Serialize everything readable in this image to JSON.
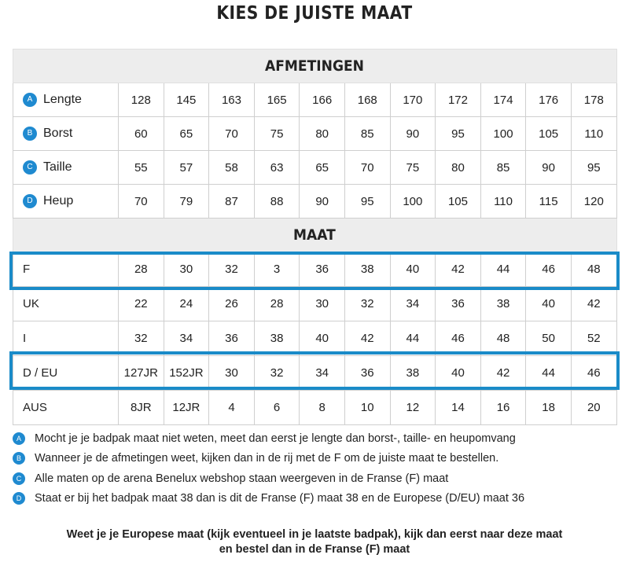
{
  "title": "KIES DE JUISTE MAAT",
  "measurements": {
    "heading": "AFMETINGEN",
    "rows": [
      {
        "badge": "A",
        "label": "Lengte",
        "values": [
          "128",
          "145",
          "163",
          "165",
          "166",
          "168",
          "170",
          "172",
          "174",
          "176",
          "178"
        ]
      },
      {
        "badge": "B",
        "label": "Borst",
        "values": [
          "60",
          "65",
          "70",
          "75",
          "80",
          "85",
          "90",
          "95",
          "100",
          "105",
          "110"
        ]
      },
      {
        "badge": "C",
        "label": "Taille",
        "values": [
          "55",
          "57",
          "58",
          "63",
          "65",
          "70",
          "75",
          "80",
          "85",
          "90",
          "95"
        ]
      },
      {
        "badge": "D",
        "label": "Heup",
        "values": [
          "70",
          "79",
          "87",
          "88",
          "90",
          "95",
          "100",
          "105",
          "110",
          "115",
          "120"
        ]
      }
    ]
  },
  "sizes": {
    "heading": "MAAT",
    "rows": [
      {
        "label": "F",
        "values": [
          "28",
          "30",
          "32",
          "3",
          "36",
          "38",
          "40",
          "42",
          "44",
          "46",
          "48"
        ]
      },
      {
        "label": "UK",
        "values": [
          "22",
          "24",
          "26",
          "28",
          "30",
          "32",
          "34",
          "36",
          "38",
          "40",
          "42"
        ]
      },
      {
        "label": "I",
        "values": [
          "32",
          "34",
          "36",
          "38",
          "40",
          "42",
          "44",
          "46",
          "48",
          "50",
          "52"
        ]
      },
      {
        "label": "D / EU",
        "values": [
          "127JR",
          "152JR",
          "30",
          "32",
          "34",
          "36",
          "38",
          "40",
          "42",
          "44",
          "46"
        ]
      },
      {
        "label": "AUS",
        "values": [
          "8JR",
          "12JR",
          "4",
          "6",
          "8",
          "10",
          "12",
          "14",
          "16",
          "18",
          "20"
        ]
      }
    ]
  },
  "notes": [
    {
      "badge": "A",
      "text": "Mocht je je badpak maat niet weten, meet dan eerst je lengte dan borst-, taille- en heupomvang"
    },
    {
      "badge": "B",
      "text": "Wanneer je de afmetingen weet, kijken dan in de rij met de F om de juiste maat te bestellen."
    },
    {
      "badge": "C",
      "text": "Alle maten op de arena Benelux webshop staan weergeven in de Franse (F) maat"
    },
    {
      "badge": "D",
      "text": "Staat er bij het badpak maat 38 dan is dit de Franse (F) maat 38 en de Europese (D/EU) maat 36"
    }
  ],
  "footer": {
    "line1": "Weet je je Europese  maat (kijk eventueel in je laatste badpak), kijk dan eerst naar deze maat",
    "line2": "en bestel dan in de Franse  (F) maat"
  },
  "colors": {
    "accent": "#1a8bc8",
    "header_bg": "#ededed"
  }
}
